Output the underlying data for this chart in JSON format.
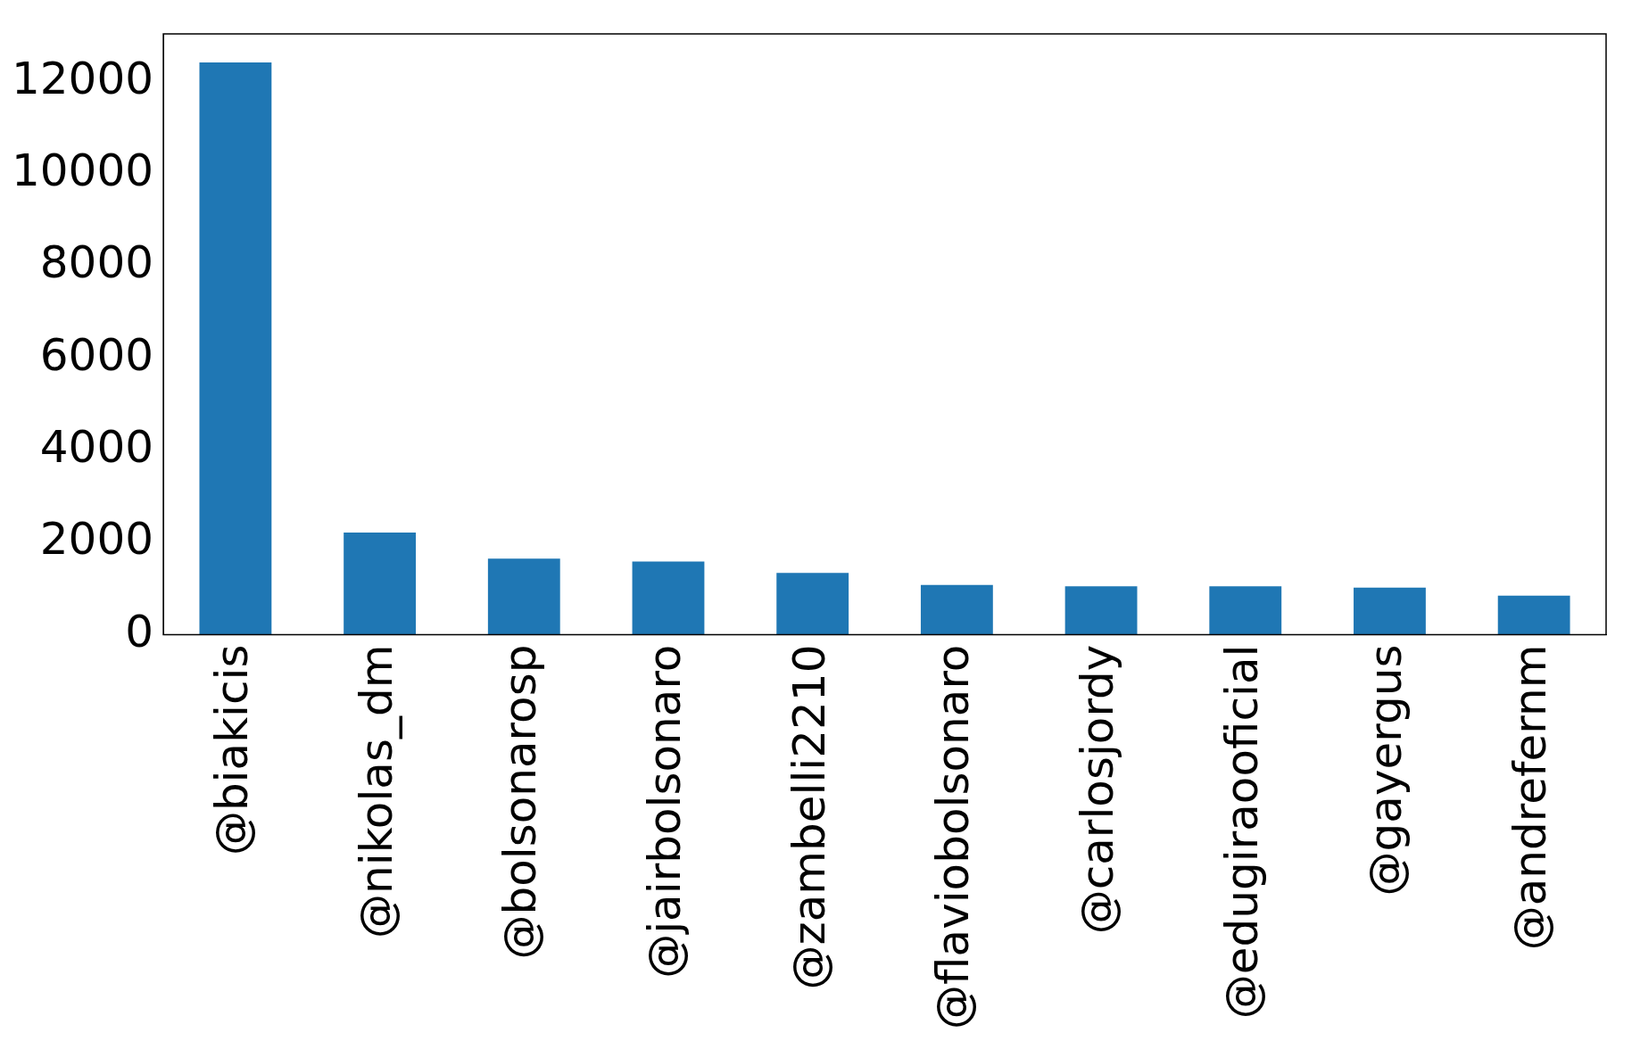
{
  "chart_data": {
    "type": "bar",
    "categories": [
      "@biakicis",
      "@nikolas_dm",
      "@bolsonarosp",
      "@jairbolsonaro",
      "@zambelli2210",
      "@flaviobolsonaro",
      "@carlosjordy",
      "@edugiraooficial",
      "@gayergus",
      "@andrefernm"
    ],
    "values": [
      12420,
      2220,
      1650,
      1590,
      1340,
      1080,
      1050,
      1050,
      1020,
      850
    ],
    "color": "#1f77b4",
    "ylim": [
      0,
      13040
    ],
    "yticks": [
      0,
      2000,
      4000,
      6000,
      8000,
      10000,
      12000
    ],
    "grid": false,
    "legend": false
  }
}
